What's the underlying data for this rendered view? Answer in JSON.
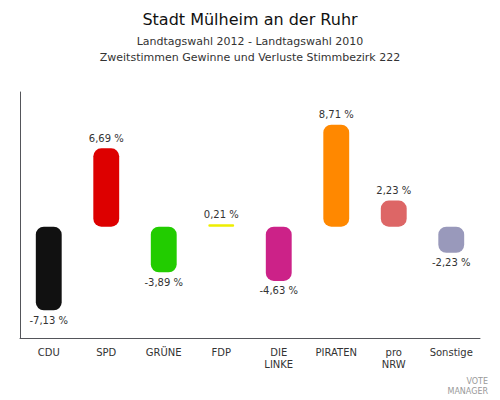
{
  "chart_data": {
    "type": "bar",
    "title": "Stadt Mülheim an der Ruhr",
    "subtitle": "Landtagswahl 2012 - Landtagswahl 2010\nZweitstimmen Gewinne und Verluste Stimmbezirk 222",
    "categories": [
      "CDU",
      "SPD",
      "GRÜNE",
      "FDP",
      "DIE\nLINKE",
      "PIRATEN",
      "pro\nNRW",
      "Sonstige"
    ],
    "values": [
      -7.13,
      6.69,
      -3.89,
      0.21,
      -4.63,
      8.71,
      2.23,
      -2.23
    ],
    "value_labels": [
      "-7,13 %",
      "6,69 %",
      "-3,89 %",
      "0,21 %",
      "-4,63 %",
      "8,71 %",
      "2,23 %",
      "-2,23 %"
    ],
    "colors": [
      "#111111",
      "#dd0000",
      "#22cc00",
      "#eeee00",
      "#cc2288",
      "#ff8800",
      "#dd6666",
      "#9999bb"
    ],
    "ylim": [
      -9.5,
      11.5
    ],
    "tick_labels": "x",
    "grid": false,
    "data_labels": true,
    "annotations": [
      "VOTE\nMANAGER"
    ]
  }
}
